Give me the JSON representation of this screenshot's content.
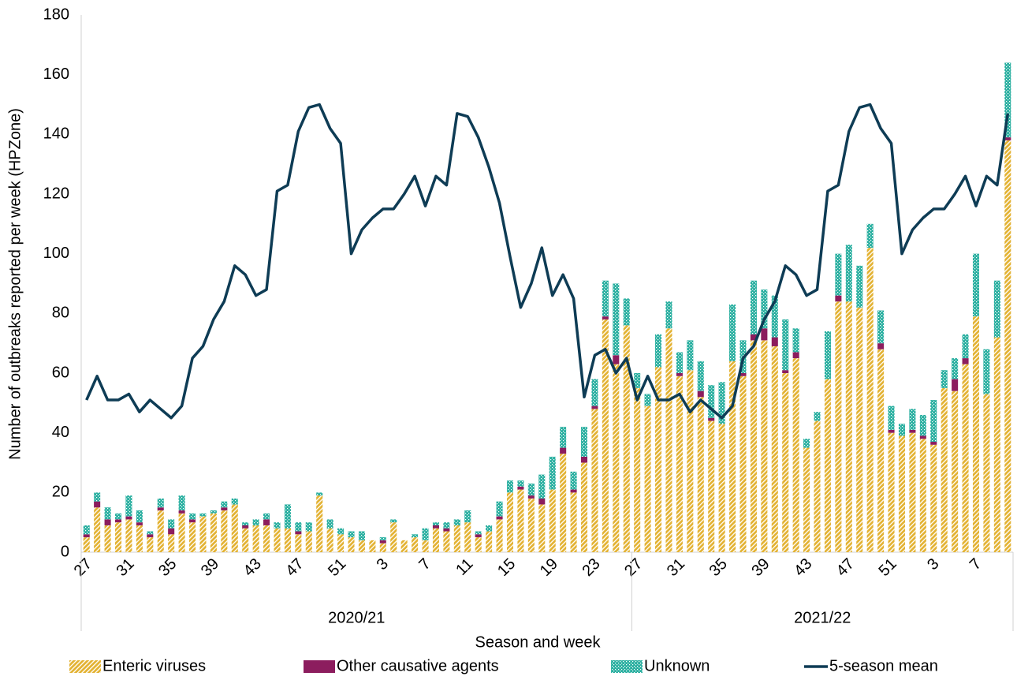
{
  "chart_data": {
    "type": "stacked-bar-line",
    "y_axis_title": "Number of outbreaks reported per week (HPZone)",
    "x_axis_title": "Season and week",
    "categories": [
      "27",
      null,
      null,
      null,
      "31",
      null,
      null,
      null,
      "35",
      null,
      null,
      null,
      "39",
      null,
      null,
      null,
      "43",
      null,
      null,
      null,
      "47",
      null,
      null,
      null,
      "51",
      null,
      null,
      null,
      "3",
      null,
      null,
      null,
      "7",
      null,
      null,
      null,
      "11",
      null,
      null,
      null,
      "15",
      null,
      null,
      null,
      "19",
      null,
      null,
      null,
      "23",
      null,
      null,
      null,
      "27",
      null,
      null,
      null,
      "31",
      null,
      null,
      null,
      "35",
      null,
      null,
      null,
      "39",
      null,
      null,
      null,
      "43",
      null,
      null,
      null,
      "47",
      null,
      null,
      null,
      "51",
      null,
      null,
      null,
      "3",
      null,
      null,
      null,
      "7",
      null,
      null,
      null
    ],
    "groups": [
      {
        "label": "2020/21",
        "count": 52
      },
      {
        "label": "2021/22",
        "count": 36
      }
    ],
    "series": [
      {
        "name": "Enteric viruses",
        "color": "#e3b232",
        "kind": "bar",
        "values": [
          5,
          15,
          9,
          10,
          11,
          9,
          5,
          14,
          6,
          13,
          10,
          12,
          13,
          14,
          16,
          8,
          9,
          9,
          8,
          8,
          6,
          7,
          19,
          8,
          6,
          5,
          4,
          4,
          3,
          10,
          4,
          5,
          4,
          8,
          7,
          9,
          10,
          5,
          7,
          11,
          20,
          21,
          18,
          16,
          21,
          33,
          20,
          30,
          48,
          78,
          63,
          76,
          55,
          49,
          62,
          75,
          59,
          61,
          52,
          44,
          43,
          64,
          59,
          71,
          71,
          69,
          60,
          65,
          35,
          44,
          58,
          84,
          84,
          82,
          102,
          68,
          40,
          39,
          40,
          38,
          36,
          55,
          54,
          63,
          79,
          53,
          72,
          138
        ]
      },
      {
        "name": "Other causative agents",
        "color": "#8c1d5e",
        "kind": "bar",
        "values": [
          1,
          2,
          2,
          1,
          1,
          1,
          1,
          1,
          2,
          1,
          1,
          0,
          0,
          1,
          0,
          1,
          0,
          2,
          0,
          0,
          1,
          0,
          0,
          0,
          0,
          0,
          0,
          0,
          1,
          0,
          0,
          0,
          0,
          1,
          1,
          0,
          0,
          1,
          0,
          1,
          0,
          1,
          1,
          2,
          0,
          2,
          1,
          2,
          1,
          1,
          3,
          0,
          0,
          0,
          0,
          0,
          1,
          0,
          2,
          1,
          0,
          0,
          1,
          2,
          4,
          3,
          1,
          2,
          0,
          0,
          0,
          2,
          0,
          0,
          0,
          2,
          1,
          0,
          1,
          1,
          1,
          0,
          4,
          2,
          0,
          0,
          0,
          1
        ]
      },
      {
        "name": "Unknown",
        "color": "#2aafa0",
        "kind": "bar",
        "values": [
          3,
          3,
          4,
          2,
          7,
          4,
          1,
          3,
          3,
          5,
          2,
          1,
          1,
          2,
          2,
          1,
          2,
          2,
          2,
          8,
          3,
          3,
          1,
          3,
          2,
          2,
          3,
          0,
          1,
          1,
          0,
          1,
          4,
          1,
          2,
          2,
          4,
          1,
          2,
          5,
          4,
          2,
          4,
          8,
          11,
          7,
          6,
          10,
          9,
          12,
          24,
          9,
          5,
          4,
          11,
          9,
          7,
          10,
          10,
          11,
          14,
          19,
          11,
          18,
          13,
          14,
          17,
          8,
          3,
          3,
          16,
          14,
          19,
          14,
          8,
          11,
          8,
          4,
          7,
          7,
          14,
          6,
          7,
          8,
          21,
          15,
          19,
          25
        ]
      },
      {
        "name": "5-season mean",
        "color": "#0e3c55",
        "kind": "line",
        "values": [
          51,
          59,
          51,
          51,
          53,
          47,
          51,
          48,
          45,
          49,
          65,
          69,
          78,
          84,
          96,
          93,
          86,
          88,
          121,
          123,
          141,
          149,
          150,
          142,
          137,
          100,
          108,
          112,
          115,
          115,
          120,
          126,
          116,
          126,
          123,
          147,
          146,
          139,
          129,
          117,
          99,
          82,
          90,
          102,
          86,
          93,
          85,
          52,
          66,
          68,
          60,
          65,
          51,
          59,
          51,
          51,
          53,
          47,
          51,
          48,
          45,
          49,
          65,
          69,
          78,
          84,
          96,
          93,
          86,
          88,
          121,
          123,
          141,
          149,
          150,
          142,
          137,
          100,
          108,
          112,
          115,
          115,
          120,
          126,
          116,
          126,
          123,
          147
        ]
      }
    ],
    "ylim": [
      0,
      180
    ],
    "yticks": [
      0,
      20,
      40,
      60,
      80,
      100,
      120,
      140,
      160,
      180
    ],
    "grid": false,
    "legend": "bottom"
  }
}
